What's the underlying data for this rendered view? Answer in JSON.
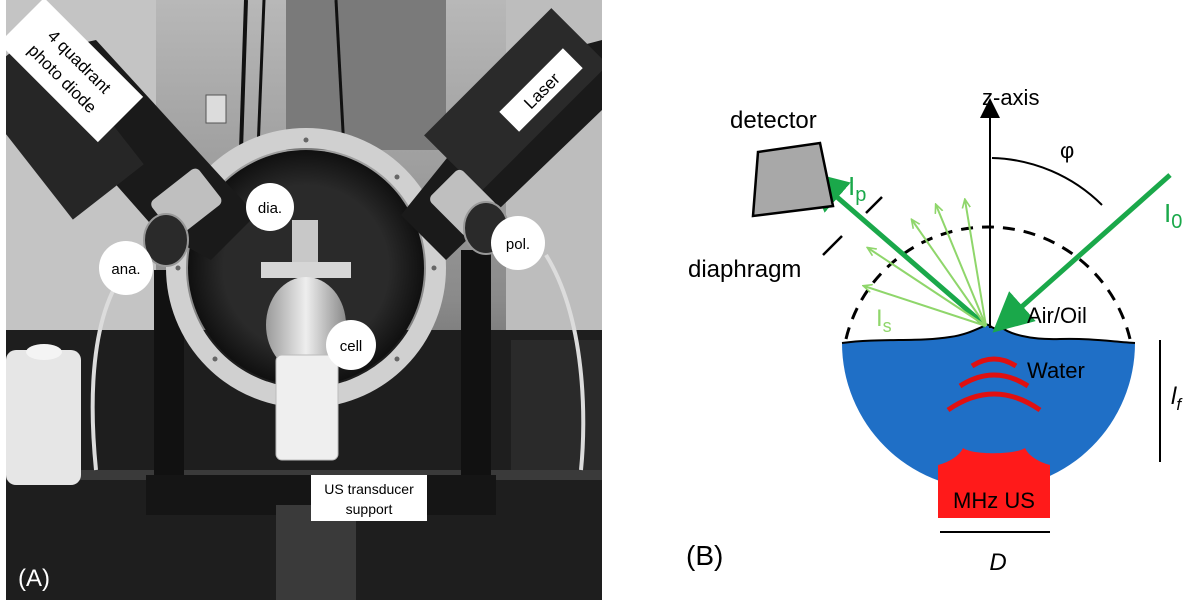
{
  "panel_a": {
    "label": "(A)",
    "callouts": {
      "photodiode": "4 quadrant photo diode",
      "photodiode_line1": "4 quadrant",
      "photodiode_line2": "photo diode",
      "laser": "Laser",
      "analyzer": "ana.",
      "diaphragm": "dia.",
      "polarizer": "pol.",
      "cell": "cell",
      "transducer_support": "US transducer support",
      "transducer_line1": "US transducer",
      "transducer_line2": "support"
    }
  },
  "panel_b": {
    "label": "(B)",
    "detector": "detector",
    "diaphragm": "diaphragm",
    "z_axis": "z-axis",
    "angle": "φ",
    "incident_main": "I",
    "incident_sub": "0",
    "reflected_main": "I",
    "reflected_sub": "p",
    "scattered_main": "I",
    "scattered_sub": "s",
    "air_oil": "Air/Oil",
    "water": "Water",
    "transducer": "MHz US",
    "focal_main": "l",
    "focal_sub": "f",
    "diameter": "D"
  },
  "colors": {
    "beam_green": "#1aa84a",
    "scatter_green": "#8fd66b",
    "water_blue": "#1f6fc6",
    "transducer_red": "#ff1a1a",
    "wave_red": "#e01010",
    "detector_gray": "#a8a8a8"
  }
}
